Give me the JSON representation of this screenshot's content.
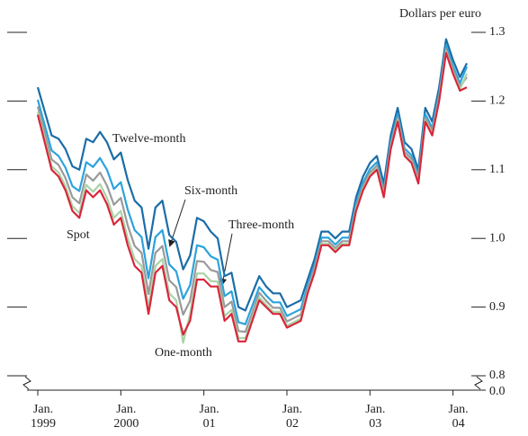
{
  "chart_data": {
    "type": "line",
    "title": "Dollars per euro",
    "categories": [
      "Jan.\n1999",
      null,
      null,
      null,
      null,
      null,
      null,
      null,
      null,
      null,
      null,
      null,
      "Jan.\n2000",
      null,
      null,
      null,
      null,
      null,
      null,
      null,
      null,
      null,
      null,
      null,
      "Jan.\n01",
      null,
      null,
      null,
      null,
      null,
      null,
      null,
      null,
      null,
      null,
      null,
      "Jan.\n02",
      null,
      null,
      null,
      null,
      null,
      null,
      null,
      null,
      null,
      null,
      null,
      "Jan.\n03",
      null,
      null,
      null,
      null,
      null,
      null,
      null,
      null,
      null,
      null,
      null,
      "Jan.\n04",
      null,
      null
    ],
    "series": [
      {
        "name": "Spot",
        "color": "#d9263a",
        "values": [
          1.18,
          1.14,
          1.1,
          1.09,
          1.07,
          1.04,
          1.03,
          1.07,
          1.06,
          1.07,
          1.05,
          1.02,
          1.03,
          0.99,
          0.96,
          0.95,
          0.89,
          0.95,
          0.96,
          0.91,
          0.9,
          0.86,
          0.88,
          0.94,
          0.94,
          0.93,
          0.93,
          0.88,
          0.89,
          0.85,
          0.85,
          0.88,
          0.91,
          0.9,
          0.89,
          0.89,
          0.87,
          0.875,
          0.88,
          0.92,
          0.95,
          0.99,
          0.99,
          0.98,
          0.99,
          0.99,
          1.04,
          1.07,
          1.09,
          1.1,
          1.06,
          1.13,
          1.17,
          1.12,
          1.11,
          1.08,
          1.17,
          1.15,
          1.2,
          1.27,
          1.24,
          1.215,
          1.22
        ]
      },
      {
        "name": "One-month",
        "color": "#a9d3a7",
        "values": [
          1.184,
          1.145,
          1.105,
          1.096,
          1.076,
          1.047,
          1.037,
          1.078,
          1.068,
          1.079,
          1.059,
          1.03,
          1.04,
          1.0,
          0.97,
          0.96,
          0.9,
          0.96,
          0.97,
          0.92,
          0.91,
          0.848,
          0.89,
          0.949,
          0.949,
          0.938,
          0.937,
          0.887,
          0.896,
          0.855,
          0.855,
          0.884,
          0.914,
          0.903,
          0.893,
          0.893,
          0.873,
          0.878,
          0.883,
          0.922,
          0.952,
          0.992,
          0.992,
          0.982,
          0.992,
          0.992,
          1.042,
          1.072,
          1.092,
          1.102,
          1.062,
          1.132,
          1.172,
          1.122,
          1.112,
          1.082,
          1.172,
          1.152,
          1.202,
          1.272,
          1.242,
          1.217,
          1.24
        ]
      },
      {
        "name": "Three-month",
        "color": "#9a9a9a",
        "values": [
          1.192,
          1.154,
          1.115,
          1.107,
          1.088,
          1.06,
          1.051,
          1.093,
          1.084,
          1.096,
          1.077,
          1.049,
          1.059,
          1.019,
          0.989,
          0.979,
          0.919,
          0.979,
          0.989,
          0.939,
          0.929,
          0.889,
          0.909,
          0.967,
          0.966,
          0.954,
          0.951,
          0.9,
          0.908,
          0.865,
          0.864,
          0.892,
          0.921,
          0.909,
          0.899,
          0.899,
          0.879,
          0.884,
          0.889,
          0.926,
          0.956,
          0.996,
          0.996,
          0.986,
          0.996,
          0.996,
          1.046,
          1.076,
          1.096,
          1.106,
          1.066,
          1.136,
          1.176,
          1.126,
          1.116,
          1.086,
          1.176,
          1.156,
          1.206,
          1.276,
          1.246,
          1.221,
          1.235
        ]
      },
      {
        "name": "Six-month",
        "color": "#2ba3dc",
        "values": [
          1.202,
          1.165,
          1.128,
          1.12,
          1.103,
          1.076,
          1.069,
          1.111,
          1.104,
          1.117,
          1.1,
          1.072,
          1.082,
          1.042,
          1.012,
          1.002,
          0.942,
          1.002,
          1.012,
          0.962,
          0.952,
          0.912,
          0.932,
          0.99,
          0.987,
          0.974,
          0.969,
          0.916,
          0.923,
          0.878,
          0.875,
          0.902,
          0.929,
          0.917,
          0.907,
          0.907,
          0.887,
          0.892,
          0.897,
          0.931,
          0.961,
          1.001,
          1.001,
          0.991,
          1.001,
          1.001,
          1.051,
          1.081,
          1.101,
          1.111,
          1.071,
          1.141,
          1.181,
          1.131,
          1.121,
          1.091,
          1.181,
          1.161,
          1.211,
          1.281,
          1.251,
          1.226,
          1.25
        ]
      },
      {
        "name": "Twelve-month",
        "color": "#1b6da6",
        "values": [
          1.22,
          1.185,
          1.15,
          1.145,
          1.13,
          1.105,
          1.1,
          1.145,
          1.14,
          1.155,
          1.14,
          1.115,
          1.125,
          1.085,
          1.055,
          1.045,
          0.985,
          1.045,
          1.055,
          1.005,
          0.995,
          0.955,
          0.975,
          1.03,
          1.025,
          1.01,
          1.0,
          0.945,
          0.95,
          0.9,
          0.895,
          0.92,
          0.945,
          0.93,
          0.92,
          0.92,
          0.9,
          0.905,
          0.91,
          0.94,
          0.97,
          1.01,
          1.01,
          1.0,
          1.01,
          1.01,
          1.06,
          1.09,
          1.11,
          1.12,
          1.08,
          1.15,
          1.19,
          1.14,
          1.13,
          1.1,
          1.19,
          1.17,
          1.22,
          1.29,
          1.26,
          1.235,
          1.255
        ]
      }
    ],
    "ylim": [
      0.8,
      1.3
    ],
    "axis_break": true,
    "yticks": [
      {
        "value": 0,
        "label": "0.0"
      },
      0.8,
      0.9,
      {
        "value": 1,
        "label": "1.0"
      },
      1.1,
      1.2,
      1.3
    ]
  }
}
